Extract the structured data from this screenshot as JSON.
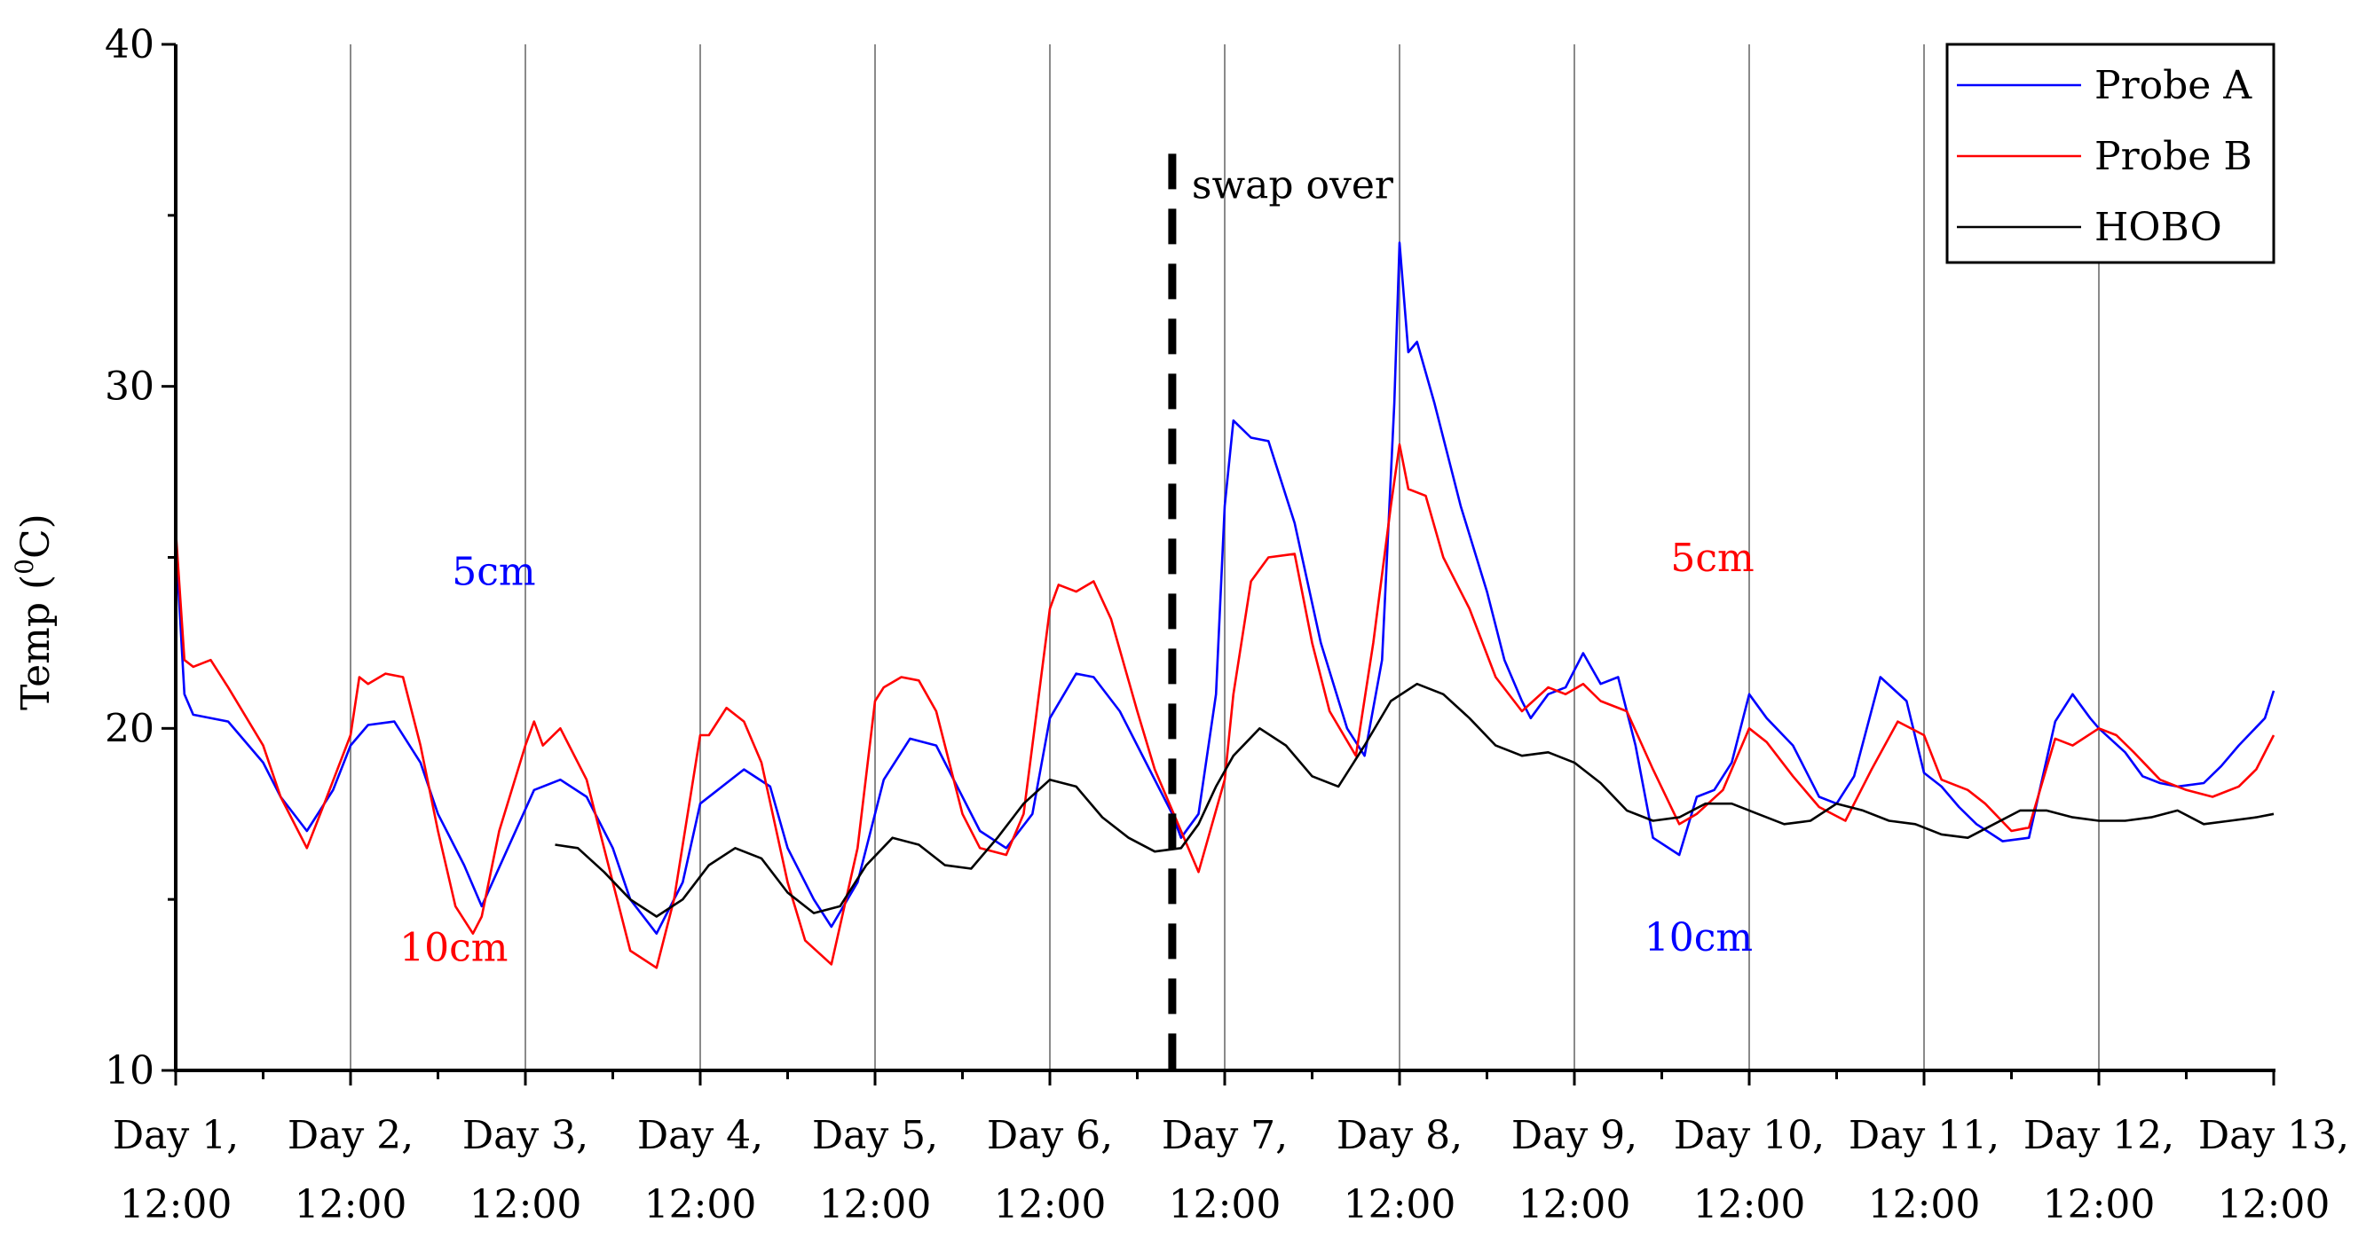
{
  "chart_data": {
    "type": "line",
    "title": "",
    "xlabel": "",
    "ylabel": "Temp",
    "ylabel_unit_prefix": "(",
    "ylabel_unit_sup": "0",
    "ylabel_unit_suffix": "C)",
    "xlim": [
      0,
      12
    ],
    "ylim": [
      10,
      40
    ],
    "yticks": [
      10,
      20,
      30,
      40
    ],
    "grid": "vertical",
    "legend": "top-right",
    "x_tick_labels": [
      {
        "top": "Day 1,",
        "bottom": "12:00"
      },
      {
        "top": "Day 2,",
        "bottom": "12:00"
      },
      {
        "top": "Day 3,",
        "bottom": "12:00"
      },
      {
        "top": "Day 4,",
        "bottom": "12:00"
      },
      {
        "top": "Day 5,",
        "bottom": "12:00"
      },
      {
        "top": "Day 6,",
        "bottom": "12:00"
      },
      {
        "top": "Day 7,",
        "bottom": "12:00"
      },
      {
        "top": "Day 8,",
        "bottom": "12:00"
      },
      {
        "top": "Day 9,",
        "bottom": "12:00"
      },
      {
        "top": "Day 10,",
        "bottom": "12:00"
      },
      {
        "top": "Day 11,",
        "bottom": "12:00"
      },
      {
        "top": "Day 12,",
        "bottom": "12:00"
      },
      {
        "top": "Day 13,",
        "bottom": "12:00"
      }
    ],
    "series": [
      {
        "name": "Probe A",
        "color": "#0000ff",
        "x": [
          0,
          0.05,
          0.1,
          0.3,
          0.5,
          0.6,
          0.75,
          0.9,
          1.0,
          1.1,
          1.25,
          1.4,
          1.5,
          1.65,
          1.75,
          1.9,
          2.05,
          2.2,
          2.35,
          2.5,
          2.6,
          2.75,
          2.9,
          3.0,
          3.1,
          3.25,
          3.4,
          3.5,
          3.65,
          3.75,
          3.9,
          4.05,
          4.2,
          4.35,
          4.5,
          4.6,
          4.75,
          4.9,
          5.0,
          5.15,
          5.25,
          5.4,
          5.55,
          5.7,
          5.75,
          5.85,
          5.95,
          6.0,
          6.05,
          6.15,
          6.25,
          6.4,
          6.55,
          6.7,
          6.8,
          6.9,
          6.97,
          7.0,
          7.05,
          7.1,
          7.2,
          7.35,
          7.5,
          7.6,
          7.7,
          7.75,
          7.85,
          7.95,
          8.05,
          8.15,
          8.25,
          8.35,
          8.45,
          8.6,
          8.7,
          8.8,
          8.9,
          9.0,
          9.1,
          9.25,
          9.4,
          9.5,
          9.6,
          9.75,
          9.9,
          10.0,
          10.1,
          10.2,
          10.3,
          10.45,
          10.6,
          10.75,
          10.85,
          10.95,
          11.0,
          11.15,
          11.25,
          11.35,
          11.45,
          11.6,
          11.7,
          11.8,
          11.95,
          12.0
        ],
        "y": [
          25.5,
          21.0,
          20.4,
          20.2,
          19.0,
          18.0,
          17.0,
          18.2,
          19.5,
          20.1,
          20.2,
          19.0,
          17.5,
          16.0,
          14.8,
          16.5,
          18.2,
          18.5,
          18.0,
          16.5,
          15.0,
          14.0,
          15.5,
          17.8,
          18.2,
          18.8,
          18.3,
          16.5,
          15.0,
          14.2,
          15.5,
          18.5,
          19.7,
          19.5,
          18.0,
          17.0,
          16.5,
          17.5,
          20.3,
          21.6,
          21.5,
          20.5,
          19.0,
          17.5,
          16.8,
          17.5,
          21.0,
          26.5,
          29.0,
          28.5,
          28.4,
          26.0,
          22.5,
          20.0,
          19.2,
          22.0,
          29.5,
          34.2,
          31.0,
          31.3,
          29.5,
          26.5,
          24.0,
          22.0,
          20.8,
          20.3,
          21.0,
          21.2,
          22.2,
          21.3,
          21.5,
          19.5,
          16.8,
          16.3,
          18.0,
          18.2,
          19.0,
          21.0,
          20.3,
          19.5,
          18.0,
          17.8,
          18.6,
          21.5,
          20.8,
          18.7,
          18.3,
          17.7,
          17.2,
          16.7,
          16.8,
          20.2,
          21.0,
          20.3,
          20.0,
          19.3,
          18.6,
          18.4,
          18.3,
          18.4,
          18.9,
          19.5,
          20.3,
          21.1
        ]
      },
      {
        "name": "Probe B",
        "color": "#ff0000",
        "x": [
          0,
          0.05,
          0.1,
          0.2,
          0.3,
          0.5,
          0.6,
          0.75,
          0.85,
          1.0,
          1.05,
          1.1,
          1.2,
          1.3,
          1.4,
          1.5,
          1.6,
          1.7,
          1.75,
          1.85,
          2.0,
          2.05,
          2.1,
          2.2,
          2.35,
          2.5,
          2.6,
          2.75,
          2.85,
          3.0,
          3.05,
          3.15,
          3.25,
          3.35,
          3.5,
          3.6,
          3.75,
          3.9,
          4.0,
          4.05,
          4.15,
          4.25,
          4.35,
          4.5,
          4.6,
          4.75,
          4.85,
          5.0,
          5.05,
          5.15,
          5.25,
          5.35,
          5.5,
          5.6,
          5.75,
          5.85,
          6.0,
          6.05,
          6.15,
          6.25,
          6.4,
          6.5,
          6.6,
          6.75,
          6.85,
          6.95,
          7.0,
          7.05,
          7.15,
          7.25,
          7.4,
          7.55,
          7.7,
          7.85,
          7.95,
          8.05,
          8.15,
          8.3,
          8.45,
          8.6,
          8.7,
          8.85,
          9.0,
          9.1,
          9.25,
          9.4,
          9.55,
          9.7,
          9.85,
          10.0,
          10.1,
          10.25,
          10.35,
          10.5,
          10.6,
          10.75,
          10.85,
          11.0,
          11.1,
          11.2,
          11.35,
          11.5,
          11.65,
          11.8,
          11.9,
          12.0
        ],
        "y": [
          25.8,
          22.0,
          21.8,
          22.0,
          21.2,
          19.5,
          18.0,
          16.5,
          17.8,
          19.8,
          21.5,
          21.3,
          21.6,
          21.5,
          19.5,
          17.0,
          14.8,
          14.0,
          14.5,
          17.0,
          19.5,
          20.2,
          19.5,
          20.0,
          18.5,
          15.5,
          13.5,
          13.0,
          15.0,
          19.8,
          19.8,
          20.6,
          20.2,
          19.0,
          15.5,
          13.8,
          13.1,
          16.5,
          20.8,
          21.2,
          21.5,
          21.4,
          20.5,
          17.5,
          16.5,
          16.3,
          17.5,
          23.5,
          24.2,
          24.0,
          24.3,
          23.2,
          20.5,
          18.8,
          17.0,
          15.8,
          18.5,
          21.0,
          24.3,
          25.0,
          25.1,
          22.5,
          20.5,
          19.2,
          22.5,
          26.5,
          28.3,
          27.0,
          26.8,
          25.0,
          23.5,
          21.5,
          20.5,
          21.2,
          21.0,
          21.3,
          20.8,
          20.5,
          18.8,
          17.2,
          17.5,
          18.2,
          20.0,
          19.6,
          18.6,
          17.7,
          17.3,
          18.8,
          20.2,
          19.8,
          18.5,
          18.2,
          17.8,
          17.0,
          17.1,
          19.7,
          19.5,
          20.0,
          19.8,
          19.3,
          18.5,
          18.2,
          18.0,
          18.3,
          18.8,
          19.8
        ]
      },
      {
        "name": "HOBO",
        "color": "#000000",
        "x": [
          2.17,
          2.3,
          2.45,
          2.6,
          2.75,
          2.9,
          3.05,
          3.2,
          3.35,
          3.5,
          3.65,
          3.8,
          3.95,
          4.1,
          4.25,
          4.4,
          4.55,
          4.7,
          4.85,
          5.0,
          5.15,
          5.3,
          5.45,
          5.6,
          5.75,
          5.85,
          5.95,
          6.05,
          6.2,
          6.35,
          6.5,
          6.65,
          6.8,
          6.95,
          7.1,
          7.25,
          7.4,
          7.55,
          7.7,
          7.85,
          8.0,
          8.15,
          8.3,
          8.45,
          8.6,
          8.75,
          8.9,
          9.05,
          9.2,
          9.35,
          9.5,
          9.65,
          9.8,
          9.95,
          10.1,
          10.25,
          10.4,
          10.55,
          10.7,
          10.85,
          11.0,
          11.15,
          11.3,
          11.45,
          11.6,
          11.75,
          11.9,
          12.0
        ],
        "y": [
          16.6,
          16.5,
          15.8,
          15.0,
          14.5,
          15.0,
          16.0,
          16.5,
          16.2,
          15.2,
          14.6,
          14.8,
          16.0,
          16.8,
          16.6,
          16.0,
          15.9,
          16.8,
          17.8,
          18.5,
          18.3,
          17.4,
          16.8,
          16.4,
          16.5,
          17.2,
          18.3,
          19.2,
          20.0,
          19.5,
          18.6,
          18.3,
          19.5,
          20.8,
          21.3,
          21.0,
          20.3,
          19.5,
          19.2,
          19.3,
          19.0,
          18.4,
          17.6,
          17.3,
          17.4,
          17.8,
          17.8,
          17.5,
          17.2,
          17.3,
          17.8,
          17.6,
          17.3,
          17.2,
          16.9,
          16.8,
          17.2,
          17.6,
          17.6,
          17.4,
          17.3,
          17.3,
          17.4,
          17.6,
          17.2,
          17.3,
          17.4,
          17.5
        ]
      }
    ],
    "swap_line": {
      "x": 5.7,
      "label": "swap over"
    },
    "annotations": [
      {
        "text": "5cm",
        "x": 1.58,
        "y": 24.2,
        "color": "#0000ff"
      },
      {
        "text": "10cm",
        "x": 1.28,
        "y": 13.2,
        "color": "#ff0000"
      },
      {
        "text": "5cm",
        "x": 8.55,
        "y": 24.6,
        "color": "#ff0000"
      },
      {
        "text": "10cm",
        "x": 8.4,
        "y": 13.5,
        "color": "#0000ff"
      }
    ]
  }
}
